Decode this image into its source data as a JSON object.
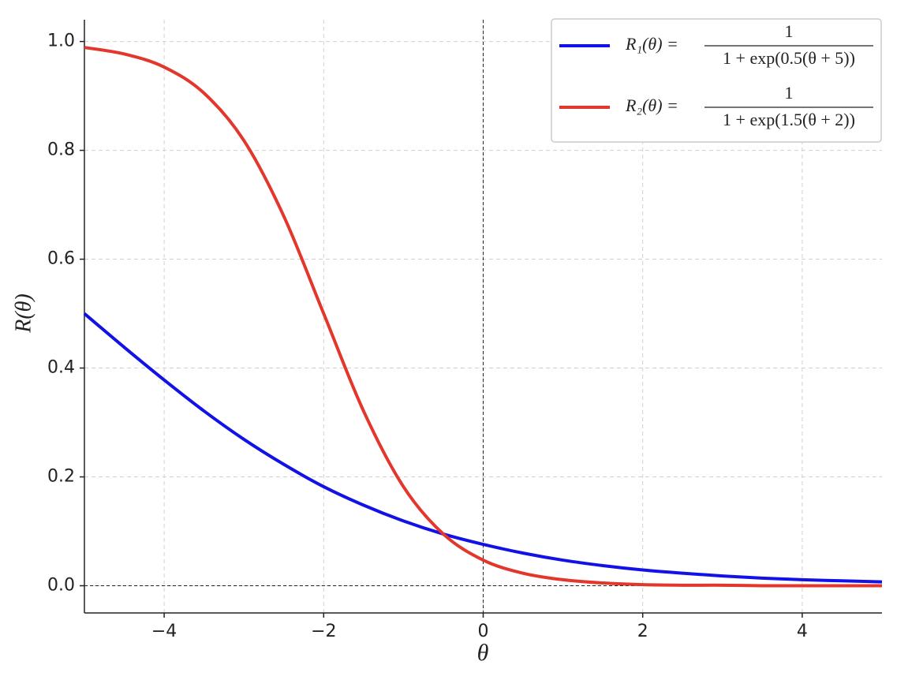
{
  "chart_data": {
    "type": "line",
    "x_label": "θ",
    "y_label": "R(θ)",
    "x": [
      -5,
      -4.5,
      -4,
      -3.5,
      -3,
      -2.5,
      -2,
      -1.5,
      -1,
      -0.5,
      0,
      0.5,
      1,
      1.5,
      2,
      2.5,
      3,
      3.5,
      4,
      4.5,
      5
    ],
    "series": [
      {
        "name": "R₁(θ) =",
        "formula_numerator": "1",
        "formula_denominator": "1 + exp(0.5(θ + 5))",
        "color": "#1212e6",
        "values": [
          0.5,
          0.438,
          0.378,
          0.321,
          0.269,
          0.223,
          0.182,
          0.148,
          0.119,
          0.095,
          0.076,
          0.06,
          0.047,
          0.037,
          0.029,
          0.023,
          0.018,
          0.014,
          0.011,
          0.009,
          0.007
        ]
      },
      {
        "name": "R₂(θ) =",
        "formula_numerator": "1",
        "formula_denominator": "1 + exp(1.5(θ + 2))",
        "color": "#e3362c",
        "values": [
          0.989,
          0.977,
          0.953,
          0.905,
          0.818,
          0.679,
          0.5,
          0.321,
          0.182,
          0.095,
          0.047,
          0.023,
          0.011,
          0.005,
          0.002,
          0.001,
          0.001,
          0,
          0,
          0,
          0
        ]
      }
    ],
    "xlim": [
      -5,
      5
    ],
    "xticks": [
      {
        "value": -4,
        "label": "−4"
      },
      {
        "value": -2,
        "label": "−2"
      },
      0,
      2,
      4
    ],
    "ylim": [
      -0.05,
      1.04
    ],
    "yticks": [
      {
        "value": 0,
        "label": "0.0"
      },
      0.2,
      0.4,
      0.6,
      0.8,
      {
        "value": 1,
        "label": "1.0"
      }
    ],
    "grid": true,
    "zero_lines": true,
    "legend": "upper right"
  }
}
